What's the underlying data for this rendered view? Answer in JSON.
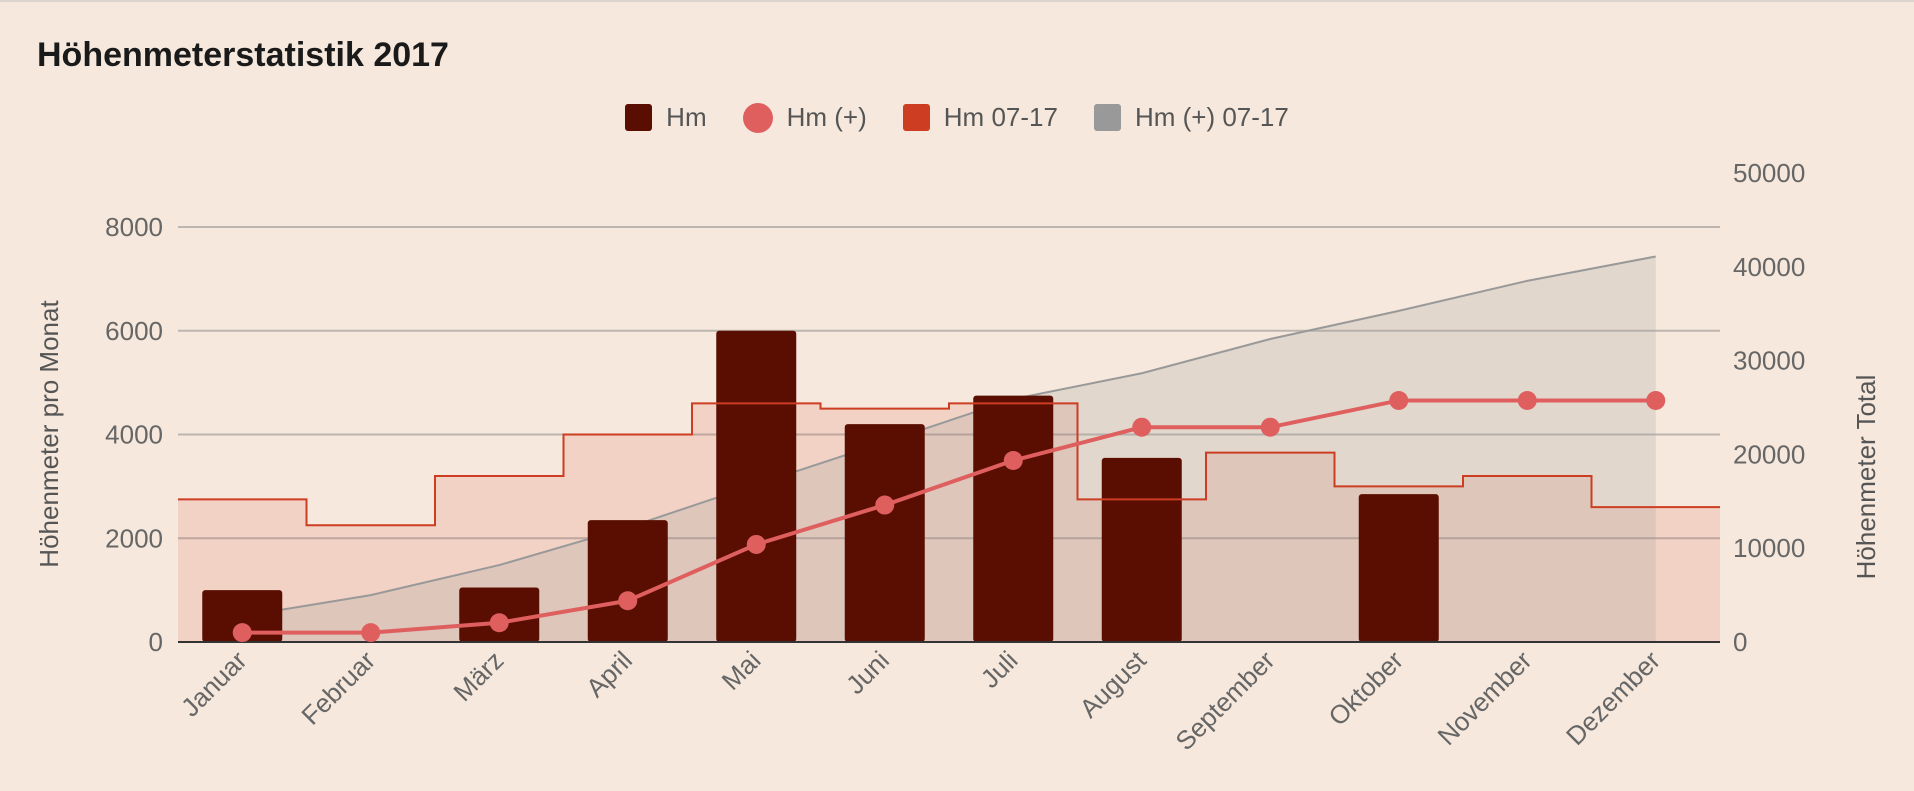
{
  "chart_data": {
    "type": "bar",
    "title": "Höhenmeterstatistik 2017",
    "categories": [
      "Januar",
      "Februar",
      "März",
      "April",
      "Mai",
      "Juni",
      "Juli",
      "August",
      "September",
      "Oktober",
      "November",
      "Dezember"
    ],
    "series": [
      {
        "name": "Hm",
        "type": "bar",
        "axis": "left",
        "color": "#5a0e02",
        "values": [
          1000,
          0,
          1050,
          2350,
          6000,
          4200,
          4750,
          3550,
          0,
          2850,
          0,
          0
        ]
      },
      {
        "name": "Hm (+)",
        "type": "line-markers",
        "axis": "right",
        "color": "#df5f5f",
        "values": [
          1000,
          1000,
          2050,
          4400,
          10400,
          14600,
          19350,
          22900,
          22900,
          25750,
          25750,
          25750
        ]
      },
      {
        "name": "Hm 07-17",
        "type": "stepped-area",
        "axis": "left",
        "color": "#cc3d22",
        "values": [
          2750,
          2250,
          3200,
          4000,
          4600,
          4500,
          4600,
          2750,
          3650,
          3000,
          3200,
          2600
        ]
      },
      {
        "name": "Hm (+) 07-17",
        "type": "area",
        "axis": "right",
        "color": "#999999",
        "values": [
          2750,
          5000,
          8200,
          12200,
          16800,
          21300,
          25900,
          28650,
          32300,
          35300,
          38500,
          41100
        ]
      }
    ],
    "ylabel": "Höhenmeter pro Monat",
    "y2label": "Höhenmeter Total",
    "ylim": [
      0,
      8000
    ],
    "y2lim": [
      0,
      50000
    ],
    "yticks": [
      "0",
      "2000",
      "4000",
      "6000",
      "8000"
    ],
    "y2ticks": [
      "0",
      "10000",
      "20000",
      "30000",
      "40000",
      "50000"
    ],
    "grid": true,
    "legend": "top"
  }
}
